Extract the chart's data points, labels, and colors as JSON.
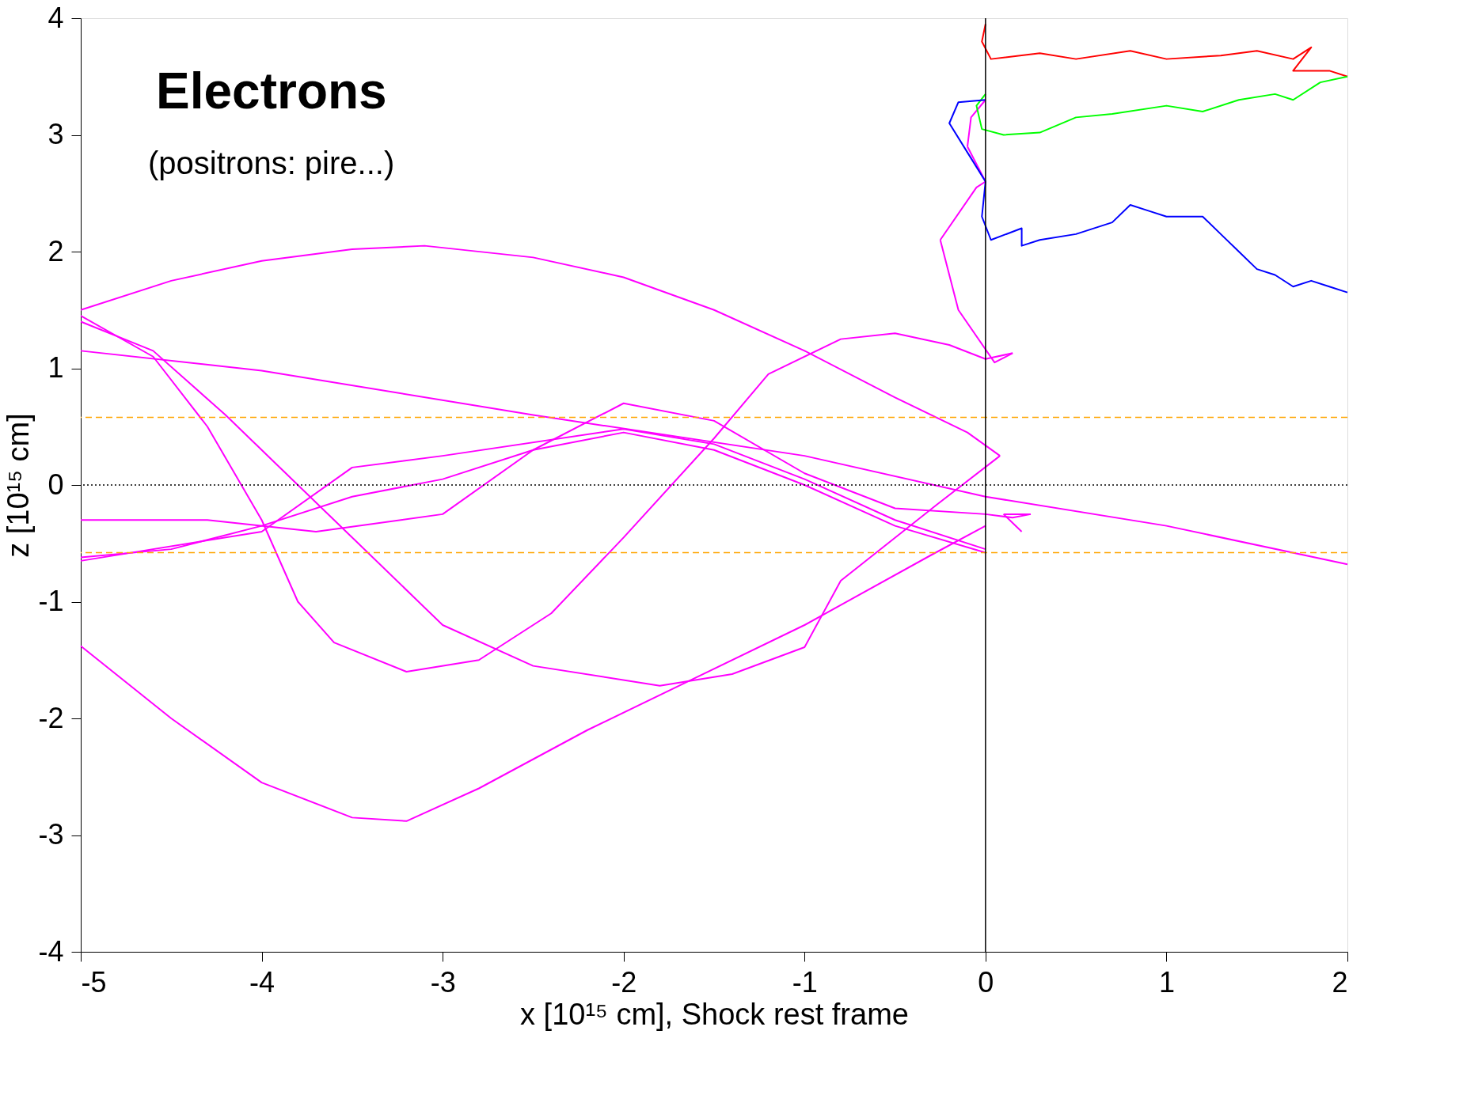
{
  "chart_data": {
    "type": "line",
    "xlabel": "x [10¹⁵ cm], Shock rest frame",
    "ylabel": "z [10¹⁵ cm]",
    "annotations": [
      "Electrons",
      "(positrons: pire...)"
    ],
    "xlim": [
      -5,
      2
    ],
    "xticks": [
      -5,
      -4,
      -3,
      -2,
      -1,
      0,
      1,
      2
    ],
    "ylim": [
      -4,
      4
    ],
    "yticks": [
      -4,
      -3,
      -2,
      -1,
      0,
      1,
      2,
      3,
      4
    ],
    "grid": false,
    "line_style": "solid",
    "marker": "none",
    "ref_lines": [
      {
        "axis": "y",
        "value": 0,
        "color": "#000000",
        "line_style": "dotted"
      },
      {
        "axis": "y",
        "value": 0.58,
        "color": "#ffa500",
        "line_style": "dashed"
      },
      {
        "axis": "y",
        "value": -0.58,
        "color": "#ffa500",
        "line_style": "dashed"
      },
      {
        "axis": "x",
        "value": 0,
        "color": "#000000",
        "line_style": "solid"
      }
    ],
    "series": [
      {
        "color": "#ff00ff",
        "x": [
          -5,
          -4.5,
          -4,
          -3.5,
          -3.1,
          -2.5,
          -2,
          -1.5,
          -1,
          -0.5,
          -0.1,
          0.08
        ],
        "values": [
          1.5,
          1.75,
          1.92,
          2.02,
          2.05,
          1.95,
          1.78,
          1.5,
          1.15,
          0.75,
          0.45,
          0.25
        ]
      },
      {
        "color": "#ff00ff",
        "x": [
          0.08,
          -0.27,
          -0.8,
          -1,
          -1.4,
          -1.8,
          -2.5,
          -3,
          -3.6,
          -4.2,
          -4.6,
          -5
        ],
        "values": [
          0.25,
          -0.17,
          -0.82,
          -1.39,
          -1.62,
          -1.72,
          -1.55,
          -1.2,
          -0.3,
          0.6,
          1.15,
          1.4
        ]
      },
      {
        "color": "#ff00ff",
        "x": [
          -5,
          -4.6,
          -4.3,
          -4,
          -3.8,
          -3.6,
          -3.2,
          -2.8,
          -2.4,
          -2,
          -1.5,
          -1.2,
          -0.8,
          -0.5,
          -0.2,
          0,
          0.15
        ],
        "values": [
          1.45,
          1.1,
          0.5,
          -0.3,
          -1,
          -1.35,
          -1.6,
          -1.5,
          -1.1,
          -0.45,
          0.4,
          0.95,
          1.25,
          1.3,
          1.2,
          1.08,
          1.13
        ]
      },
      {
        "color": "#ff00ff",
        "x": [
          0.15,
          0.05,
          -0.15,
          -0.25
        ],
        "values": [
          1.13,
          1.05,
          1.5,
          2.1
        ]
      },
      {
        "color": "#ff00ff",
        "x": [
          -0.25,
          -0.05,
          0
        ],
        "values": [
          2.1,
          2.55,
          2.6
        ]
      },
      {
        "color": "#ff00ff",
        "x": [
          0,
          -0.1
        ],
        "values": [
          2.6,
          2.9
        ]
      },
      {
        "color": "#ff00ff",
        "x": [
          -0.1,
          -0.08,
          0
        ],
        "values": [
          2.9,
          3.15,
          3.3
        ]
      },
      {
        "color": "#ff00ff",
        "x": [
          -5,
          -4.5,
          -4,
          -3.5,
          -3.2,
          -2.8,
          -2.2,
          -1.6,
          -1,
          -0.3,
          0
        ],
        "values": [
          -1.38,
          -2,
          -2.55,
          -2.85,
          -2.88,
          -2.6,
          -2.1,
          -1.65,
          -1.2,
          -0.6,
          -0.35
        ]
      },
      {
        "color": "#ff00ff",
        "x": [
          -5,
          -4,
          -2.5,
          -1,
          0,
          1,
          2
        ],
        "values": [
          1.15,
          0.98,
          0.6,
          0.25,
          -0.1,
          -0.35,
          -0.68
        ]
      },
      {
        "color": "#ff00ff",
        "x": [
          -5,
          -4.3,
          -3.7,
          -3,
          -2.5,
          -2,
          -1.5,
          -1,
          -0.5,
          0,
          0.15,
          0.25
        ],
        "values": [
          -0.3,
          -0.3,
          -0.4,
          -0.25,
          0.3,
          0.7,
          0.55,
          0.1,
          -0.2,
          -0.25,
          -0.28,
          -0.25
        ]
      },
      {
        "color": "#ff00ff",
        "x": [
          0.25,
          0.1
        ],
        "values": [
          -0.25,
          -0.25
        ]
      },
      {
        "color": "#ff00ff",
        "x": [
          0.1,
          0.2
        ],
        "values": [
          -0.25,
          -0.4
        ]
      },
      {
        "color": "#ff00ff",
        "x": [
          -5,
          -4.5,
          -4,
          -3.5,
          -3,
          -2.5,
          -2,
          -1.5,
          -1,
          -0.5,
          0
        ],
        "values": [
          -0.62,
          -0.55,
          -0.35,
          -0.1,
          0.05,
          0.3,
          0.45,
          0.3,
          0,
          -0.35,
          -0.58
        ]
      },
      {
        "color": "#ff00ff",
        "x": [
          -5,
          -4,
          -3.5,
          -3,
          -2,
          -1.5,
          -1,
          -0.5,
          0
        ],
        "values": [
          -0.65,
          -0.4,
          0.15,
          0.25,
          0.48,
          0.35,
          0.05,
          -0.3,
          -0.55
        ]
      },
      {
        "color": "#ff0000",
        "x": [
          0,
          -0.02,
          0.03,
          0.3,
          0.5,
          0.8,
          1,
          1.3,
          1.5,
          1.7,
          1.8,
          1.7,
          1.9,
          2
        ],
        "values": [
          3.95,
          3.8,
          3.65,
          3.7,
          3.65,
          3.72,
          3.65,
          3.68,
          3.72,
          3.65,
          3.75,
          3.55,
          3.55,
          3.5
        ]
      },
      {
        "color": "#00ff00",
        "x": [
          0,
          -0.05,
          -0.02,
          0.1,
          0.3,
          0.5,
          0.7,
          1,
          1.2,
          1.4,
          1.6,
          1.7,
          1.85,
          2
        ],
        "values": [
          3.35,
          3.25,
          3.05,
          3,
          3.02,
          3.15,
          3.18,
          3.25,
          3.2,
          3.3,
          3.35,
          3.3,
          3.45,
          3.5
        ]
      },
      {
        "color": "#0000ff",
        "x": [
          0,
          -0.15,
          -0.2,
          -0.1,
          0,
          -0.02,
          0.03,
          0.2,
          0.2,
          0.3,
          0.5,
          0.7,
          0.8,
          0.9,
          1,
          1.2,
          1.3,
          1.4,
          1.5,
          1.6,
          1.7,
          1.8,
          1.9,
          2
        ],
        "values": [
          3.3,
          3.28,
          3.1,
          2.85,
          2.6,
          2.3,
          2.1,
          2.2,
          2.05,
          2.1,
          2.15,
          2.25,
          2.4,
          2.35,
          2.3,
          2.3,
          2.15,
          2,
          1.85,
          1.8,
          1.7,
          1.75,
          1.7,
          1.65
        ]
      }
    ]
  }
}
